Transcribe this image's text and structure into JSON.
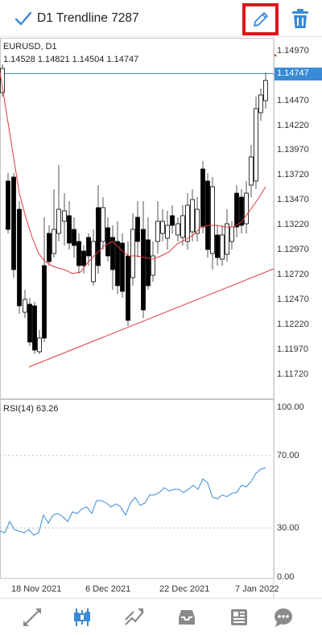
{
  "header": {
    "title": "D1 Trendline 7287",
    "check_icon": "checkmark-icon",
    "edit_icon": "pencil-icon",
    "delete_icon": "trash-icon"
  },
  "chart": {
    "symbol": "EURUSD, D1",
    "ohlc": "1.14528 1.14821 1.14504 1.14747",
    "current_price": "1.14747",
    "price_ticks": [
      "1.14970",
      "1.14470",
      "1.14220",
      "1.13970",
      "1.13720",
      "1.13470",
      "1.13220",
      "1.12970",
      "1.12720",
      "1.12470",
      "1.12220",
      "1.11970",
      "1.11720"
    ],
    "rsi_label": "RSI(14) 63.26",
    "rsi_ticks": [
      "100.00",
      "70.00",
      "30.00",
      "0.00"
    ],
    "date_labels": [
      "18 Nov 2021",
      "6 Dec 2021",
      "22 Dec 2021",
      "7 Jan 2022"
    ],
    "colors": {
      "bull": "#ffffff",
      "bear": "#000000",
      "ma_line": "#e03a3a",
      "trendline": "#e03a3a",
      "rsi_line": "#3a8ad6",
      "price_line": "#3a8ad6",
      "highlight": "#e4141b"
    }
  },
  "bottom_nav": [
    {
      "name": "quotes",
      "icon": "arrows-diagonal-icon"
    },
    {
      "name": "chart",
      "icon": "candlestick-icon"
    },
    {
      "name": "trade",
      "icon": "trend-line-icon"
    },
    {
      "name": "history",
      "icon": "inbox-tray-icon"
    },
    {
      "name": "news",
      "icon": "newspaper-icon"
    },
    {
      "name": "messages",
      "icon": "chat-bubble-icon"
    }
  ]
}
